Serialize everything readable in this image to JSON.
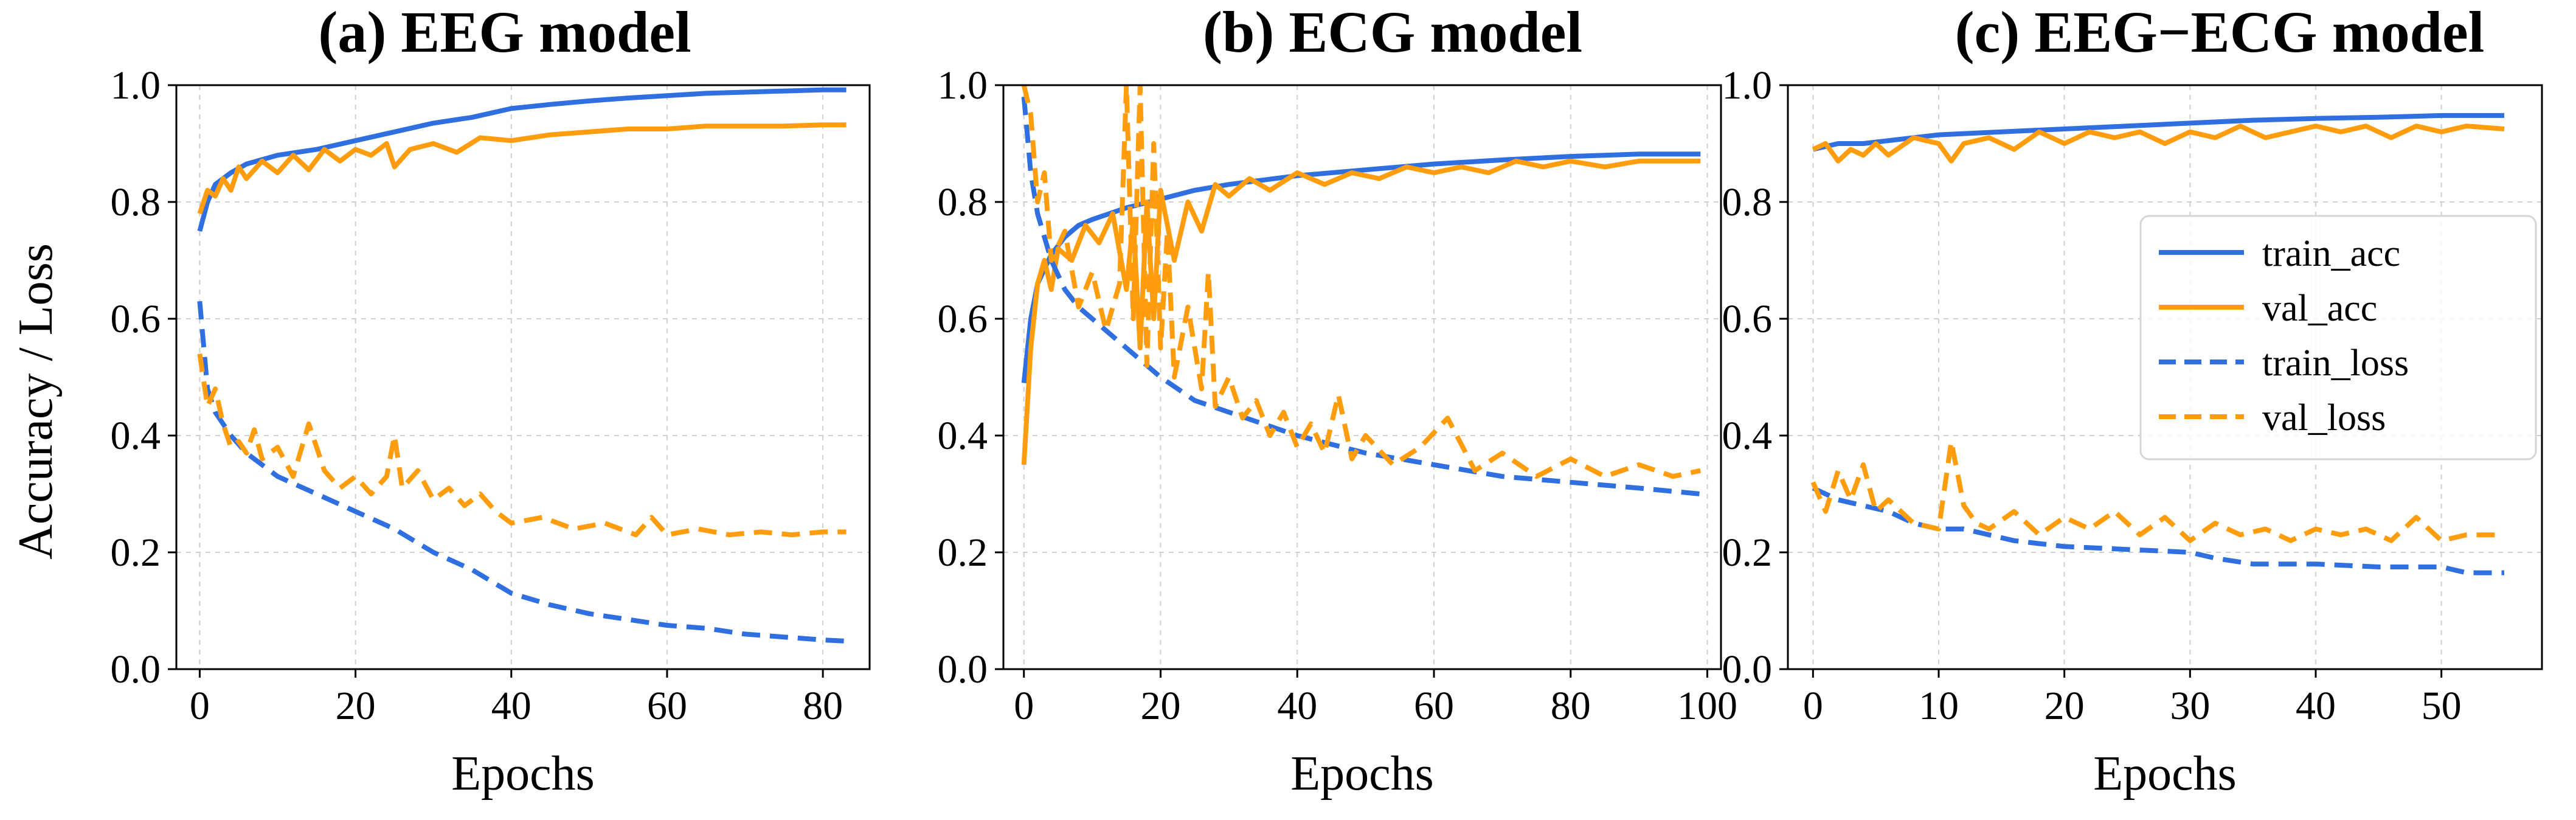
{
  "colors": {
    "train": "#2f6fdf",
    "val": "#ff9d0e"
  },
  "y_axis_label": "Accuracy / Loss",
  "legend": {
    "entries": [
      {
        "label": "train_acc",
        "series": "train_acc"
      },
      {
        "label": "val_acc",
        "series": "val_acc"
      },
      {
        "label": "train_loss",
        "series": "train_loss"
      },
      {
        "label": "val_loss",
        "series": "val_loss"
      }
    ]
  },
  "chart_data": [
    {
      "type": "line",
      "title": "(a) EEG model",
      "xlabel": "Epochs",
      "ylabel": "Accuracy / Loss",
      "xlim": [
        -3,
        86
      ],
      "ylim": [
        0.0,
        1.0
      ],
      "xticks": [
        0,
        20,
        40,
        60,
        80
      ],
      "yticks": [
        "0.0",
        "0.2",
        "0.4",
        "0.6",
        "0.8",
        "1.0"
      ],
      "grid": true,
      "series": [
        {
          "name": "train_acc",
          "style": "solid",
          "color": "train",
          "x": [
            0,
            1,
            2,
            4,
            6,
            10,
            15,
            20,
            25,
            30,
            35,
            40,
            45,
            50,
            55,
            60,
            65,
            70,
            75,
            80,
            83
          ],
          "y": [
            0.75,
            0.8,
            0.83,
            0.85,
            0.865,
            0.88,
            0.89,
            0.905,
            0.92,
            0.935,
            0.945,
            0.96,
            0.967,
            0.973,
            0.978,
            0.982,
            0.986,
            0.988,
            0.99,
            0.992,
            0.992
          ]
        },
        {
          "name": "val_acc",
          "style": "solid",
          "color": "val",
          "x": [
            0,
            1,
            2,
            3,
            4,
            5,
            6,
            8,
            10,
            12,
            14,
            16,
            18,
            20,
            22,
            24,
            25,
            27,
            30,
            33,
            36,
            40,
            45,
            50,
            55,
            60,
            65,
            70,
            75,
            80,
            83
          ],
          "y": [
            0.78,
            0.82,
            0.81,
            0.84,
            0.82,
            0.86,
            0.84,
            0.87,
            0.85,
            0.88,
            0.855,
            0.89,
            0.87,
            0.89,
            0.88,
            0.9,
            0.86,
            0.89,
            0.9,
            0.885,
            0.91,
            0.905,
            0.915,
            0.92,
            0.925,
            0.925,
            0.93,
            0.93,
            0.93,
            0.932,
            0.932
          ]
        },
        {
          "name": "train_loss",
          "style": "dashed",
          "color": "train",
          "x": [
            0,
            1,
            2,
            4,
            6,
            8,
            10,
            15,
            20,
            25,
            30,
            35,
            40,
            45,
            50,
            55,
            60,
            65,
            70,
            75,
            80,
            83
          ],
          "y": [
            0.63,
            0.48,
            0.44,
            0.4,
            0.37,
            0.35,
            0.33,
            0.3,
            0.27,
            0.24,
            0.2,
            0.17,
            0.13,
            0.11,
            0.095,
            0.085,
            0.075,
            0.07,
            0.06,
            0.055,
            0.05,
            0.048
          ]
        },
        {
          "name": "val_loss",
          "style": "dashed",
          "color": "val",
          "x": [
            0,
            1,
            2,
            3,
            4,
            5,
            6,
            7,
            8,
            10,
            12,
            14,
            16,
            18,
            20,
            22,
            24,
            25,
            26,
            28,
            30,
            32,
            34,
            36,
            38,
            40,
            44,
            48,
            52,
            56,
            58,
            60,
            64,
            68,
            72,
            76,
            80,
            83
          ],
          "y": [
            0.54,
            0.45,
            0.48,
            0.42,
            0.38,
            0.39,
            0.37,
            0.41,
            0.36,
            0.38,
            0.33,
            0.42,
            0.34,
            0.31,
            0.33,
            0.3,
            0.33,
            0.4,
            0.31,
            0.34,
            0.29,
            0.31,
            0.28,
            0.3,
            0.27,
            0.25,
            0.26,
            0.24,
            0.25,
            0.23,
            0.26,
            0.23,
            0.24,
            0.23,
            0.235,
            0.23,
            0.235,
            0.235
          ]
        }
      ]
    },
    {
      "type": "line",
      "title": "(b) ECG model",
      "xlabel": "Epochs",
      "ylabel": "",
      "xlim": [
        -3,
        102
      ],
      "ylim": [
        0.0,
        1.0
      ],
      "xticks": [
        0,
        20,
        40,
        60,
        80,
        100
      ],
      "yticks": [
        "0.0",
        "0.2",
        "0.4",
        "0.6",
        "0.8",
        "1.0"
      ],
      "grid": true,
      "series": [
        {
          "name": "train_acc",
          "style": "solid",
          "color": "train",
          "x": [
            0,
            1,
            2,
            4,
            6,
            8,
            10,
            15,
            20,
            25,
            30,
            40,
            50,
            60,
            70,
            80,
            90,
            99
          ],
          "y": [
            0.49,
            0.6,
            0.66,
            0.71,
            0.74,
            0.76,
            0.77,
            0.79,
            0.805,
            0.82,
            0.83,
            0.845,
            0.855,
            0.865,
            0.872,
            0.878,
            0.882,
            0.882
          ]
        },
        {
          "name": "val_acc",
          "style": "solid",
          "color": "val",
          "x": [
            0,
            1,
            2,
            3,
            4,
            5,
            7,
            9,
            11,
            13,
            15,
            16,
            17,
            18,
            19,
            20,
            22,
            24,
            26,
            28,
            30,
            33,
            36,
            40,
            44,
            48,
            52,
            56,
            60,
            64,
            68,
            72,
            76,
            80,
            85,
            90,
            95,
            99
          ],
          "y": [
            0.35,
            0.55,
            0.66,
            0.7,
            0.65,
            0.72,
            0.7,
            0.76,
            0.73,
            0.78,
            0.65,
            0.77,
            0.55,
            0.8,
            0.6,
            0.82,
            0.7,
            0.8,
            0.75,
            0.83,
            0.81,
            0.84,
            0.82,
            0.85,
            0.83,
            0.85,
            0.84,
            0.86,
            0.85,
            0.86,
            0.85,
            0.87,
            0.86,
            0.87,
            0.86,
            0.87,
            0.87,
            0.87
          ]
        },
        {
          "name": "train_loss",
          "style": "dashed",
          "color": "train",
          "x": [
            0,
            1,
            2,
            4,
            6,
            8,
            10,
            15,
            20,
            25,
            30,
            40,
            50,
            60,
            70,
            80,
            90,
            99
          ],
          "y": [
            0.98,
            0.85,
            0.78,
            0.7,
            0.65,
            0.62,
            0.6,
            0.55,
            0.5,
            0.46,
            0.44,
            0.4,
            0.37,
            0.35,
            0.33,
            0.32,
            0.31,
            0.3
          ]
        },
        {
          "name": "val_loss",
          "style": "dashed",
          "color": "val",
          "x": [
            0,
            1,
            2,
            3,
            4,
            6,
            8,
            10,
            12,
            14,
            15,
            16,
            17,
            18,
            19,
            20,
            21,
            22,
            24,
            26,
            27,
            28,
            30,
            32,
            34,
            36,
            38,
            40,
            42,
            44,
            46,
            48,
            50,
            54,
            58,
            62,
            66,
            70,
            75,
            80,
            85,
            90,
            95,
            99
          ],
          "y": [
            1.0,
            0.95,
            0.8,
            0.85,
            0.7,
            0.75,
            0.62,
            0.68,
            0.58,
            0.66,
            1.0,
            0.6,
            1.0,
            0.52,
            0.9,
            0.55,
            0.75,
            0.5,
            0.62,
            0.48,
            0.68,
            0.45,
            0.5,
            0.43,
            0.46,
            0.4,
            0.44,
            0.38,
            0.42,
            0.37,
            0.47,
            0.36,
            0.4,
            0.35,
            0.38,
            0.43,
            0.34,
            0.37,
            0.33,
            0.36,
            0.33,
            0.35,
            0.33,
            0.34
          ]
        }
      ]
    },
    {
      "type": "line",
      "title": "(c) EEG−ECG model",
      "xlabel": "Epochs",
      "ylabel": "",
      "xlim": [
        -2,
        58
      ],
      "ylim": [
        0.0,
        1.0
      ],
      "xticks": [
        0,
        10,
        20,
        30,
        40,
        50
      ],
      "yticks": [
        "0.0",
        "0.2",
        "0.4",
        "0.6",
        "0.8",
        "1.0"
      ],
      "grid": true,
      "legend_position": "center-right",
      "series": [
        {
          "name": "train_acc",
          "style": "solid",
          "color": "train",
          "x": [
            0,
            2,
            4,
            6,
            8,
            10,
            15,
            20,
            25,
            30,
            35,
            40,
            45,
            50,
            55
          ],
          "y": [
            0.89,
            0.9,
            0.9,
            0.905,
            0.91,
            0.915,
            0.92,
            0.925,
            0.93,
            0.935,
            0.94,
            0.943,
            0.945,
            0.948,
            0.948
          ]
        },
        {
          "name": "val_acc",
          "style": "solid",
          "color": "val",
          "x": [
            0,
            1,
            2,
            3,
            4,
            5,
            6,
            8,
            10,
            11,
            12,
            14,
            16,
            18,
            20,
            22,
            24,
            26,
            28,
            30,
            32,
            34,
            36,
            38,
            40,
            42,
            44,
            46,
            48,
            50,
            52,
            55
          ],
          "y": [
            0.89,
            0.9,
            0.87,
            0.89,
            0.88,
            0.9,
            0.88,
            0.91,
            0.9,
            0.87,
            0.9,
            0.91,
            0.89,
            0.92,
            0.9,
            0.92,
            0.91,
            0.92,
            0.9,
            0.92,
            0.91,
            0.93,
            0.91,
            0.92,
            0.93,
            0.92,
            0.93,
            0.91,
            0.93,
            0.92,
            0.93,
            0.925
          ]
        },
        {
          "name": "train_loss",
          "style": "dashed",
          "color": "train",
          "x": [
            0,
            2,
            4,
            6,
            8,
            10,
            12,
            14,
            16,
            18,
            20,
            25,
            30,
            32,
            35,
            40,
            45,
            50,
            52,
            55
          ],
          "y": [
            0.31,
            0.29,
            0.28,
            0.27,
            0.25,
            0.24,
            0.24,
            0.23,
            0.22,
            0.215,
            0.21,
            0.205,
            0.2,
            0.19,
            0.18,
            0.18,
            0.175,
            0.175,
            0.165,
            0.165
          ]
        },
        {
          "name": "val_loss",
          "style": "dashed",
          "color": "val",
          "x": [
            0,
            1,
            2,
            3,
            4,
            5,
            6,
            8,
            10,
            11,
            12,
            13,
            14,
            16,
            18,
            20,
            22,
            24,
            26,
            28,
            30,
            32,
            34,
            36,
            38,
            40,
            42,
            44,
            46,
            48,
            50,
            52,
            55
          ],
          "y": [
            0.32,
            0.27,
            0.34,
            0.29,
            0.35,
            0.27,
            0.29,
            0.25,
            0.24,
            0.39,
            0.28,
            0.25,
            0.24,
            0.27,
            0.23,
            0.26,
            0.24,
            0.27,
            0.23,
            0.26,
            0.22,
            0.25,
            0.23,
            0.24,
            0.22,
            0.24,
            0.23,
            0.24,
            0.22,
            0.26,
            0.22,
            0.23,
            0.23
          ]
        }
      ]
    }
  ]
}
